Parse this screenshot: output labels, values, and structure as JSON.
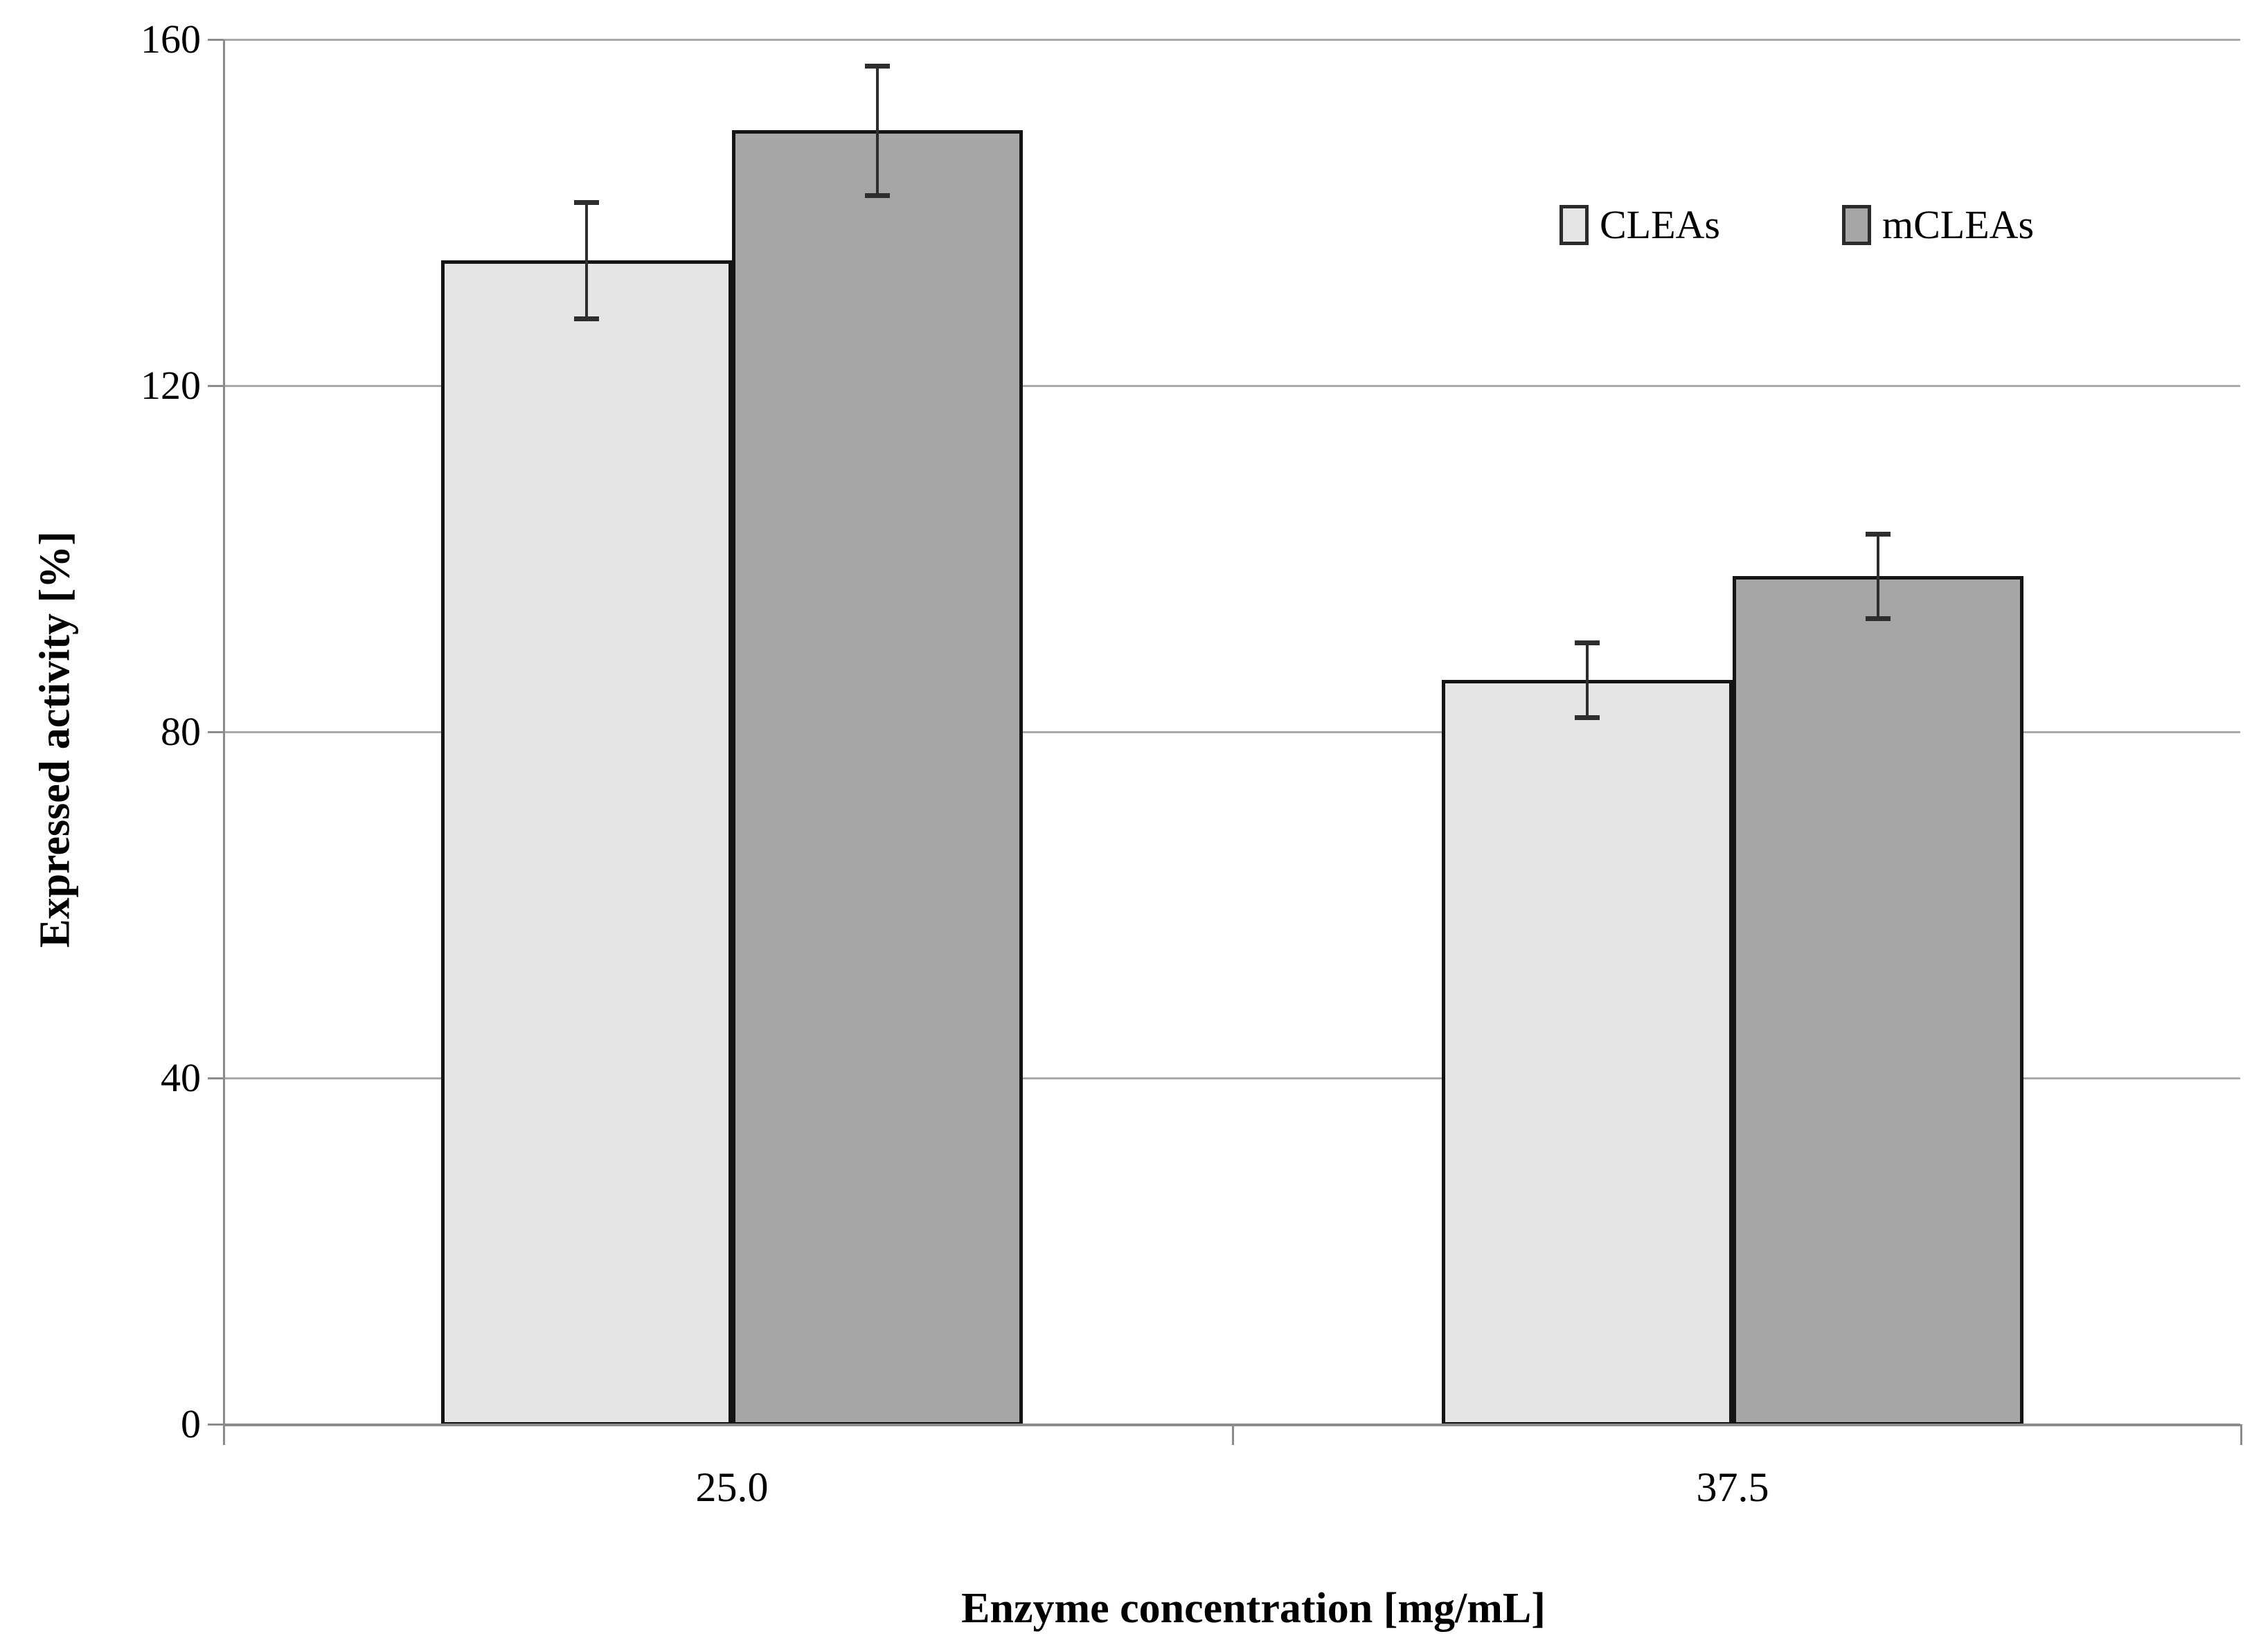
{
  "chart_data": {
    "type": "bar",
    "title": "",
    "xlabel": "Enzyme concentration [mg/mL]",
    "ylabel": "Expressed activity [%]",
    "categories": [
      "25.0",
      "37.5"
    ],
    "series": [
      {
        "name": "CLEAs",
        "color": "#e5e5e5",
        "values": [
          134.5,
          86.0
        ],
        "errors": [
          6.7,
          4.3
        ]
      },
      {
        "name": "mCLEAs",
        "color": "#a6a6a6",
        "values": [
          149.5,
          98.0
        ],
        "errors": [
          7.5,
          4.9
        ]
      }
    ],
    "ylim": [
      0,
      160
    ],
    "yticks": [
      0,
      40,
      80,
      120,
      160
    ],
    "grid": "horizontal",
    "legend_position": "top-right",
    "colors": {
      "background": "#ffffff",
      "gridline": "#a9a9a9",
      "axis_line": "#8c8c8c",
      "bar_border": "#141414",
      "error_bar": "#2e2e2e",
      "text": "#000000"
    }
  }
}
